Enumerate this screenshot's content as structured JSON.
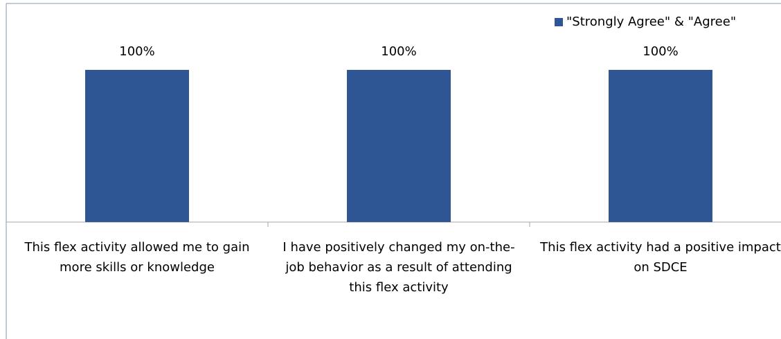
{
  "chart_data": {
    "type": "bar",
    "categories": [
      "This flex activity allowed me to gain more skills or knowledge",
      "I have positively changed my on-the-job behavior as a result of attending this flex activity",
      "This flex activity had a positive impact on SDCE"
    ],
    "series": [
      {
        "name": "\"Strongly Agree\" & \"Agree\"",
        "color": "#2e5594",
        "values": [
          100,
          100,
          100
        ],
        "value_labels": [
          "100%",
          "100%",
          "100%"
        ]
      }
    ],
    "ylim": [
      0,
      100
    ],
    "legend": "top-right"
  }
}
